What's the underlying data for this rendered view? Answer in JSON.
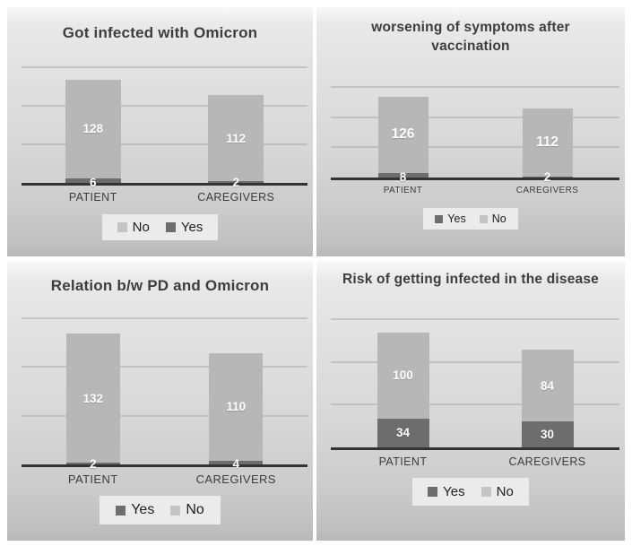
{
  "colors": {
    "bar_light": "#b7b7b7",
    "bar_dark": "#6d6d6d",
    "axis": "#333333",
    "gridline": "#a6a6a6",
    "title_text": "#3d3d3d",
    "category_text": "#3c3c3c",
    "value_text": "#ffffff",
    "legend_bg": "#ebebeb",
    "panel_bg_top": "#f8f8f8",
    "panel_bg_bottom": "#b9b9b9"
  },
  "chart_data": [
    {
      "type": "bar",
      "stacked": true,
      "title": "Got infected with Omicron",
      "categories": [
        "PATIENT",
        "CAREGIVERS"
      ],
      "series": [
        {
          "name": "No",
          "swatch": "light",
          "values": [
            128,
            112
          ]
        },
        {
          "name": "Yes",
          "swatch": "dark",
          "values": [
            6,
            2
          ]
        }
      ],
      "legend": {
        "position": "bottom",
        "items": [
          {
            "label": "No",
            "swatch": "light"
          },
          {
            "label": "Yes",
            "swatch": "dark"
          }
        ]
      },
      "ylim": [
        0,
        150
      ],
      "gridline_values": [
        50,
        100,
        150
      ],
      "grid": true
    },
    {
      "type": "bar",
      "stacked": true,
      "title": "worsening of symptoms after vaccination",
      "categories": [
        "PATIENT",
        "CAREGIVERS"
      ],
      "series": [
        {
          "name": "No",
          "swatch": "light",
          "values": [
            126,
            112
          ]
        },
        {
          "name": "Yes",
          "swatch": "dark",
          "values": [
            8,
            2
          ]
        }
      ],
      "legend": {
        "position": "bottom",
        "items": [
          {
            "label": "Yes",
            "swatch": "dark"
          },
          {
            "label": "No",
            "swatch": "light"
          }
        ]
      },
      "ylim": [
        0,
        150
      ],
      "gridline_values": [
        50,
        100,
        150
      ],
      "grid": true
    },
    {
      "type": "bar",
      "stacked": true,
      "title": "Relation b/w PD and Omicron",
      "categories": [
        "PATIENT",
        "CAREGIVERS"
      ],
      "series": [
        {
          "name": "No",
          "swatch": "light",
          "values": [
            132,
            110
          ]
        },
        {
          "name": "Yes",
          "swatch": "dark",
          "values": [
            2,
            4
          ]
        }
      ],
      "legend": {
        "position": "bottom",
        "items": [
          {
            "label": "Yes",
            "swatch": "dark"
          },
          {
            "label": "No",
            "swatch": "light"
          }
        ]
      },
      "ylim": [
        0,
        150
      ],
      "gridline_values": [
        50,
        100,
        150
      ],
      "grid": true
    },
    {
      "type": "bar",
      "stacked": true,
      "title": "Risk of getting infected in the disease",
      "categories": [
        "PATIENT",
        "CAREGIVERS"
      ],
      "series": [
        {
          "name": "No",
          "swatch": "light",
          "values": [
            100,
            84
          ]
        },
        {
          "name": "Yes",
          "swatch": "dark",
          "values": [
            34,
            30
          ]
        }
      ],
      "legend": {
        "position": "bottom",
        "items": [
          {
            "label": "Yes",
            "swatch": "dark"
          },
          {
            "label": "No",
            "swatch": "light"
          }
        ]
      },
      "ylim": [
        0,
        150
      ],
      "gridline_values": [
        50,
        100,
        150
      ],
      "grid": true
    }
  ]
}
